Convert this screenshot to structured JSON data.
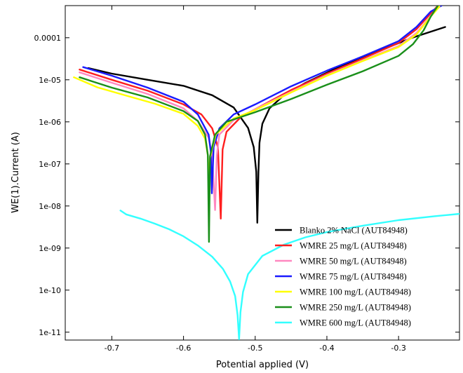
{
  "chart_data": {
    "type": "line",
    "title": "",
    "xlabel": "Potential applied (V)",
    "ylabel": "WE(1).Current (A)",
    "x_scale": "linear",
    "y_scale": "log",
    "xlim": [
      -0.765,
      -0.215
    ],
    "ylim": [
      6.5e-12,
      0.00058
    ],
    "grid": false,
    "legend_position": "bottom-right",
    "x_ticks": [
      -0.7,
      -0.6,
      -0.5,
      -0.4,
      -0.3
    ],
    "x_tick_labels": [
      "-0.7",
      "-0.6",
      "-0.5",
      "-0.4",
      "-0.3"
    ],
    "y_ticks": [
      1e-11,
      1e-10,
      1e-09,
      1e-08,
      1e-07,
      1e-06,
      1e-05,
      0.0001
    ],
    "y_tick_labels": [
      "1e-11",
      "1e-10",
      "1e-09",
      "1e-08",
      "1e-07",
      "1e-06",
      "1e-05",
      "0.0001"
    ],
    "series": [
      {
        "name": "Blanko 2% NaCl (AUT84948)",
        "color": "#000000",
        "points": [
          [
            -0.733,
            1.9e-05
          ],
          [
            -0.7,
            1.4e-05
          ],
          [
            -0.65,
            1e-05
          ],
          [
            -0.6,
            7.2e-06
          ],
          [
            -0.56,
            4.3e-06
          ],
          [
            -0.53,
            2.2e-06
          ],
          [
            -0.51,
            7.2e-07
          ],
          [
            -0.502,
            2.5e-07
          ],
          [
            -0.4985,
            6.5e-08
          ],
          [
            -0.497,
            4e-09
          ],
          [
            -0.4955,
            6.5e-08
          ],
          [
            -0.494,
            3.2e-07
          ],
          [
            -0.49,
            9e-07
          ],
          [
            -0.48,
            2.1e-06
          ],
          [
            -0.46,
            4.3e-06
          ],
          [
            -0.43,
            8.4e-06
          ],
          [
            -0.38,
            2.15e-05
          ],
          [
            -0.33,
            4.7e-05
          ],
          [
            -0.28,
            0.000101
          ],
          [
            -0.235,
            0.00018
          ]
        ]
      },
      {
        "name": "WMRE 25 mg/L (AUT84948)",
        "color": "#ff1e1e",
        "points": [
          [
            -0.745,
            1.75e-05
          ],
          [
            -0.7,
            1e-05
          ],
          [
            -0.65,
            5.5e-06
          ],
          [
            -0.6,
            2.6e-06
          ],
          [
            -0.575,
            1.5e-06
          ],
          [
            -0.56,
            7e-07
          ],
          [
            -0.552,
            2.5e-07
          ],
          [
            -0.548,
            5e-09
          ],
          [
            -0.5455,
            2.2e-07
          ],
          [
            -0.54,
            5.8e-07
          ],
          [
            -0.52,
            1.3e-06
          ],
          [
            -0.5,
            2e-06
          ],
          [
            -0.45,
            5.7e-06
          ],
          [
            -0.4,
            1.4e-05
          ],
          [
            -0.35,
            3.2e-05
          ],
          [
            -0.3,
            7.5e-05
          ],
          [
            -0.275,
            0.00016
          ],
          [
            -0.255,
            0.00038
          ],
          [
            -0.245,
            0.00058
          ]
        ]
      },
      {
        "name": "WMRE 50 mg/L (AUT84948)",
        "color": "#ff88c0",
        "points": [
          [
            -0.745,
            1.5e-05
          ],
          [
            -0.7,
            8.5e-06
          ],
          [
            -0.65,
            4.6e-06
          ],
          [
            -0.6,
            2.1e-06
          ],
          [
            -0.58,
            1.05e-06
          ],
          [
            -0.565,
            4.2e-07
          ],
          [
            -0.56,
            1.6e-07
          ],
          [
            -0.556,
            8e-09
          ],
          [
            -0.5535,
            1.6e-07
          ],
          [
            -0.55,
            5e-07
          ],
          [
            -0.53,
            1.1e-06
          ],
          [
            -0.5,
            2e-06
          ],
          [
            -0.45,
            5.2e-06
          ],
          [
            -0.4,
            1.3e-05
          ],
          [
            -0.35,
            2.9e-05
          ],
          [
            -0.3,
            6.3e-05
          ],
          [
            -0.275,
            0.00013
          ],
          [
            -0.255,
            0.00033
          ],
          [
            -0.243,
            0.00056
          ]
        ]
      },
      {
        "name": "WMRE 75 mg/L (AUT84948)",
        "color": "#1a1aff",
        "points": [
          [
            -0.74,
            2e-05
          ],
          [
            -0.7,
            1.25e-05
          ],
          [
            -0.65,
            6.5e-06
          ],
          [
            -0.6,
            3e-06
          ],
          [
            -0.58,
            1.5e-06
          ],
          [
            -0.565,
            5e-07
          ],
          [
            -0.562,
            2e-07
          ],
          [
            -0.5605,
            2e-08
          ],
          [
            -0.558,
            2.5e-07
          ],
          [
            -0.55,
            7e-07
          ],
          [
            -0.53,
            1.5e-06
          ],
          [
            -0.5,
            2.6e-06
          ],
          [
            -0.45,
            7e-06
          ],
          [
            -0.4,
            1.65e-05
          ],
          [
            -0.35,
            3.6e-05
          ],
          [
            -0.3,
            8.3e-05
          ],
          [
            -0.275,
            0.00018
          ],
          [
            -0.255,
            0.00042
          ],
          [
            -0.24,
            0.00058
          ]
        ]
      },
      {
        "name": "WMRE 100 mg/L (AUT84948)",
        "color": "#ffff00",
        "points": [
          [
            -0.753,
            1.15e-05
          ],
          [
            -0.72,
            6.6e-06
          ],
          [
            -0.68,
            4.2e-06
          ],
          [
            -0.64,
            2.7e-06
          ],
          [
            -0.6,
            1.55e-06
          ],
          [
            -0.58,
            8e-07
          ],
          [
            -0.57,
            4e-07
          ],
          [
            -0.566,
            1.6e-07
          ],
          [
            -0.5645,
            3e-08
          ],
          [
            -0.563,
            1.4e-07
          ],
          [
            -0.555,
            5e-07
          ],
          [
            -0.53,
            1.2e-06
          ],
          [
            -0.5,
            1.9e-06
          ],
          [
            -0.45,
            5e-06
          ],
          [
            -0.4,
            1.25e-05
          ],
          [
            -0.35,
            2.8e-05
          ],
          [
            -0.3,
            6e-05
          ],
          [
            -0.275,
            0.00012
          ],
          [
            -0.255,
            0.00032
          ],
          [
            -0.243,
            0.00055
          ]
        ]
      },
      {
        "name": "WMRE 250 mg/L (AUT84948)",
        "color": "#1a8f1a",
        "points": [
          [
            -0.745,
            1.15e-05
          ],
          [
            -0.7,
            6.5e-06
          ],
          [
            -0.65,
            3.8e-06
          ],
          [
            -0.6,
            1.8e-06
          ],
          [
            -0.58,
            1.05e-06
          ],
          [
            -0.57,
            5e-07
          ],
          [
            -0.566,
            1.6e-07
          ],
          [
            -0.5645,
            1.4e-09
          ],
          [
            -0.563,
            1.5e-07
          ],
          [
            -0.556,
            5e-07
          ],
          [
            -0.54,
            1e-06
          ],
          [
            -0.5,
            1.7e-06
          ],
          [
            -0.45,
            3.5e-06
          ],
          [
            -0.4,
            7.6e-06
          ],
          [
            -0.35,
            1.6e-05
          ],
          [
            -0.3,
            3.7e-05
          ],
          [
            -0.28,
            7e-05
          ],
          [
            -0.265,
            0.00015
          ],
          [
            -0.255,
            0.00032
          ],
          [
            -0.245,
            0.00058
          ]
        ]
      },
      {
        "name": "WMRE 600 mg/L  (AUT84948)",
        "color": "#33ffff",
        "points": [
          [
            -0.688,
            7.8e-09
          ],
          [
            -0.68,
            6.3e-09
          ],
          [
            -0.66,
            5e-09
          ],
          [
            -0.64,
            3.8e-09
          ],
          [
            -0.62,
            2.8e-09
          ],
          [
            -0.6,
            1.9e-09
          ],
          [
            -0.58,
            1.15e-09
          ],
          [
            -0.56,
            6.2e-10
          ],
          [
            -0.545,
            3.2e-10
          ],
          [
            -0.535,
            1.6e-10
          ],
          [
            -0.528,
            7.2e-11
          ],
          [
            -0.5245,
            2.5e-11
          ],
          [
            -0.5225,
            6.8e-12
          ],
          [
            -0.5205,
            3e-11
          ],
          [
            -0.517,
            9e-11
          ],
          [
            -0.51,
            2.4e-10
          ],
          [
            -0.49,
            6.5e-10
          ],
          [
            -0.46,
            1.2e-09
          ],
          [
            -0.43,
            1.8e-09
          ],
          [
            -0.4,
            2.4e-09
          ],
          [
            -0.35,
            3.4e-09
          ],
          [
            -0.3,
            4.6e-09
          ],
          [
            -0.25,
            5.7e-09
          ],
          [
            -0.215,
            6.5e-09
          ]
        ]
      }
    ]
  }
}
